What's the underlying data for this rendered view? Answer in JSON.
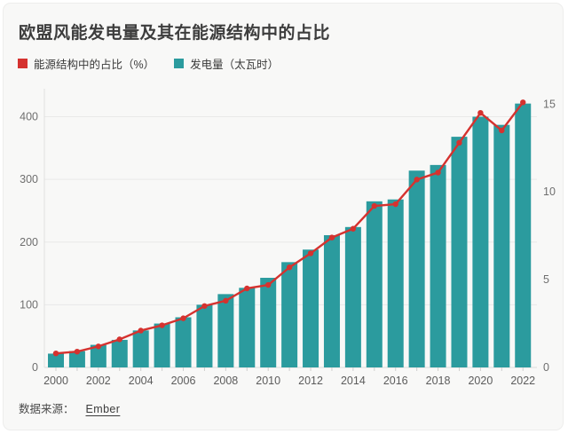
{
  "title": "欧盟风能发电量及其在能源结构中的占比",
  "legend": {
    "items": [
      {
        "label": "能源结构中的占比（%）",
        "color": "#d5322f",
        "series": "share-line"
      },
      {
        "label": "发电量（太瓦时）",
        "color": "#2b9b9e",
        "series": "generation-bars"
      }
    ]
  },
  "source": {
    "prefix": "数据来源：",
    "link_label": "Ember"
  },
  "colors": {
    "bar": "#2b9b9e",
    "line": "#d5322f",
    "grid": "#e9e9e8",
    "axis_line": "#e0e0df",
    "baseline": "#dcdcdb",
    "tick": "#cfcfce",
    "axis_text": "#6f6f6f",
    "x_text": "#5c5c5c",
    "background": "#f8f8f7"
  },
  "chart_data": {
    "type": "combo-bar-line",
    "x": [
      2000,
      2001,
      2002,
      2003,
      2004,
      2005,
      2006,
      2007,
      2008,
      2009,
      2010,
      2011,
      2012,
      2013,
      2014,
      2015,
      2016,
      2017,
      2018,
      2019,
      2020,
      2021,
      2022
    ],
    "series": [
      {
        "name": "发电量（太瓦时）",
        "type": "bar",
        "axis": "left",
        "unit": "太瓦时 (TWh)",
        "values": [
          22,
          26,
          36,
          44,
          59,
          70,
          80,
          100,
          117,
          127,
          143,
          168,
          188,
          211,
          224,
          265,
          268,
          314,
          323,
          368,
          400,
          387,
          421
        ]
      },
      {
        "name": "能源结构中的占比（%）",
        "type": "line",
        "axis": "right",
        "unit": "%",
        "values": [
          0.8,
          0.9,
          1.2,
          1.6,
          2.1,
          2.4,
          2.8,
          3.5,
          3.8,
          4.5,
          4.7,
          5.7,
          6.5,
          7.4,
          7.9,
          9.2,
          9.3,
          10.7,
          11.1,
          12.8,
          14.5,
          13.5,
          15.1
        ]
      }
    ],
    "axes": {
      "left": {
        "ticks": [
          0,
          100,
          200,
          300,
          400
        ],
        "range": [
          0,
          450
        ]
      },
      "right": {
        "ticks": [
          0,
          5,
          10,
          15
        ],
        "range": [
          0,
          15.9
        ]
      },
      "x_tick_step": 2
    },
    "grid": true,
    "legend_position": "top-left"
  }
}
